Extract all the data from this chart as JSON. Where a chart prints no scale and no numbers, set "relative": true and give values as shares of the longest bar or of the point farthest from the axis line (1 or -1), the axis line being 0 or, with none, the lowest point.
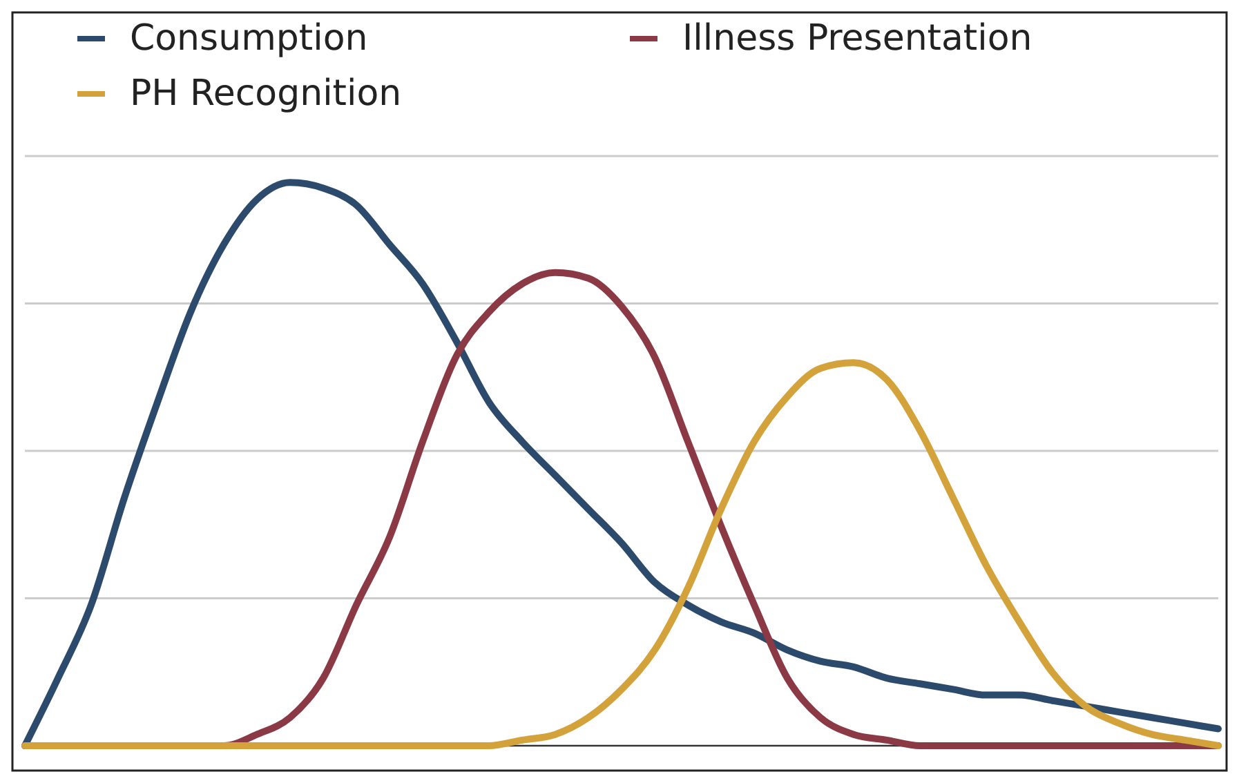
{
  "chart_data": {
    "type": "line",
    "relative": true,
    "grid": "y",
    "legend": "top",
    "marker": "none",
    "line_style": "solid",
    "categories": [
      null,
      null,
      null,
      null,
      null,
      null,
      null,
      null,
      null,
      null,
      null,
      null,
      null,
      null,
      null,
      null,
      null,
      null,
      null,
      null,
      null,
      null,
      null,
      null,
      null,
      null,
      null,
      null,
      null,
      null,
      null,
      null,
      null,
      null,
      null,
      null,
      null
    ],
    "series": [
      {
        "name": "Consumption",
        "color": "#2c4a6b",
        "values": [
          0,
          0.12,
          0.25,
          0.44,
          0.61,
          0.77,
          0.89,
          0.97,
          1,
          0.99,
          0.96,
          0.89,
          0.82,
          0.72,
          0.61,
          0.54,
          0.48,
          0.42,
          0.36,
          0.29,
          0.25,
          0.22,
          0.2,
          0.17,
          0.15,
          0.14,
          0.12,
          0.11,
          0.1,
          0.09,
          0.09,
          0.08,
          0.07,
          0.06,
          0.05,
          0.04,
          0.03
        ]
      },
      {
        "name": "Illness Presentation",
        "color": "#8b3a45",
        "values": [
          0,
          0,
          0,
          0,
          0,
          0,
          0,
          0.02,
          0.05,
          0.12,
          0.25,
          0.37,
          0.54,
          0.69,
          0.77,
          0.82,
          0.84,
          0.83,
          0.78,
          0.69,
          0.54,
          0.39,
          0.25,
          0.12,
          0.05,
          0.02,
          0.01,
          0,
          0,
          0,
          0,
          0,
          0,
          0,
          0,
          0,
          0
        ]
      },
      {
        "name": "PH Recognition",
        "color": "#d4a23a",
        "values": [
          0,
          0,
          0,
          0,
          0,
          0,
          0,
          0,
          0,
          0,
          0,
          0,
          0,
          0,
          0,
          0.01,
          0.02,
          0.05,
          0.1,
          0.17,
          0.28,
          0.42,
          0.54,
          0.62,
          0.67,
          0.68,
          0.65,
          0.56,
          0.44,
          0.32,
          0.22,
          0.13,
          0.07,
          0.04,
          0.02,
          0.01,
          0
        ]
      }
    ]
  }
}
